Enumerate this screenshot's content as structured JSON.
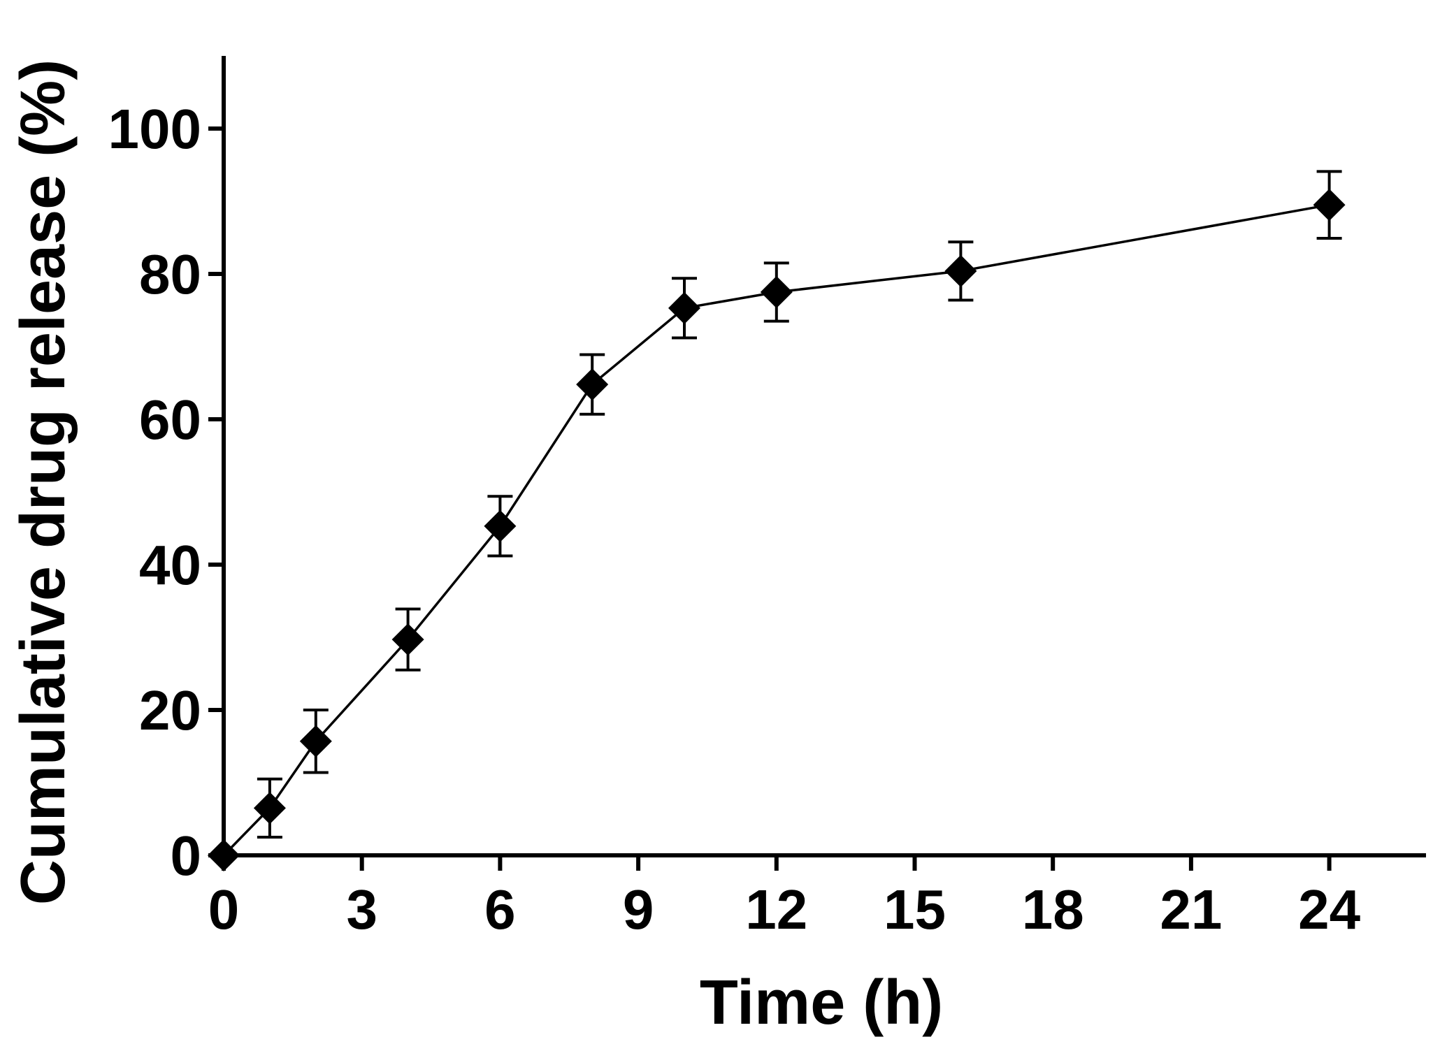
{
  "chart_data": {
    "type": "line",
    "title": "",
    "xlabel": "Time (h)",
    "ylabel": "Cumulative drug release (%)",
    "xlim": [
      0,
      26
    ],
    "ylim": [
      0,
      110
    ],
    "xticks": [
      0,
      3,
      6,
      9,
      12,
      15,
      18,
      21,
      24
    ],
    "yticks": [
      0,
      20,
      40,
      60,
      80,
      100
    ],
    "xtick_labels": [
      "0",
      "3",
      "6",
      "9",
      "12",
      "15",
      "18",
      "21",
      "24"
    ],
    "ytick_labels": [
      "0",
      "20",
      "40",
      "60",
      "80",
      "100"
    ],
    "grid": false,
    "legend": null,
    "colors": {
      "line": "#000000",
      "marker": "#000000",
      "axis": "#000000"
    },
    "series": [
      {
        "name": "Cumulative drug release",
        "marker": "diamond",
        "x": [
          0,
          1,
          2,
          4,
          6,
          8,
          10,
          12,
          16,
          24
        ],
        "y": [
          0,
          6.5,
          15.7,
          29.7,
          45.3,
          64.8,
          75.3,
          77.5,
          80.4,
          89.5
        ],
        "error": [
          0,
          4.0,
          4.3,
          4.2,
          4.1,
          4.1,
          4.1,
          4.0,
          4.0,
          4.6
        ]
      }
    ]
  }
}
